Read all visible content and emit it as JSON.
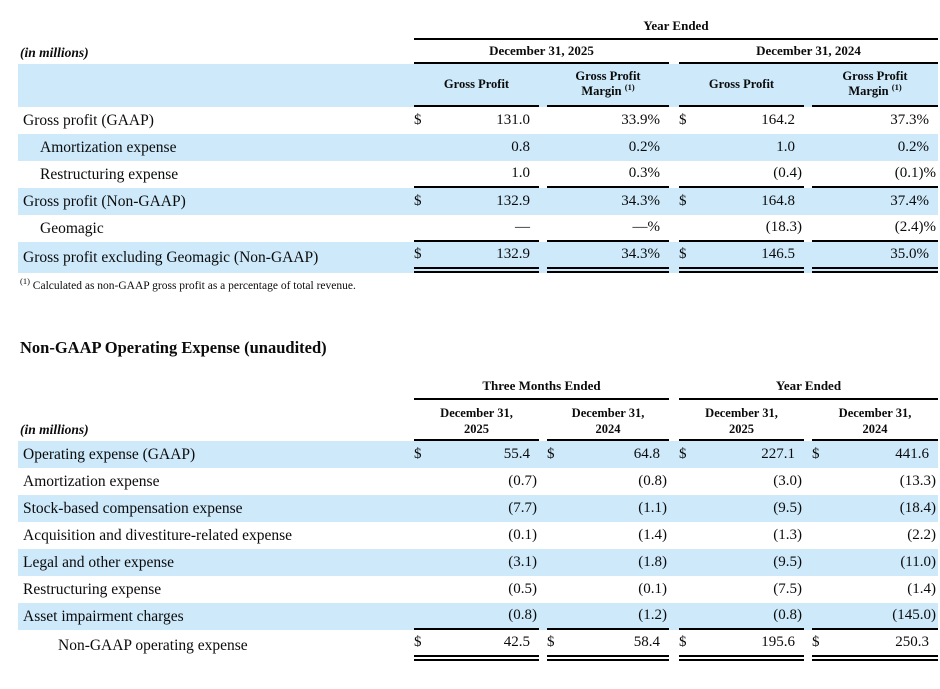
{
  "colors": {
    "row_highlight": "#cde9fa",
    "text": "#0b0b0b",
    "background": "#ffffff"
  },
  "table1": {
    "in_millions_label": "(in millions)",
    "top_header": "Year Ended",
    "group_headers": [
      "December 31, 2025",
      "December 31, 2024"
    ],
    "col_header": {
      "gross_profit": "Gross Profit",
      "margin_line1": "Gross Profit",
      "margin_line2": "Margin",
      "margin_sup": "(1)"
    },
    "rows": [
      {
        "label": "Gross profit (GAAP)",
        "cells": [
          {
            "cur": "$",
            "val": "131.0"
          },
          {
            "val": "33.9%"
          },
          {
            "cur": "$",
            "val": "164.2"
          },
          {
            "val": "37.3%"
          }
        ]
      },
      {
        "label": "Amortization expense",
        "cells": [
          {
            "val": "0.8"
          },
          {
            "val": "0.2%"
          },
          {
            "val": "1.0"
          },
          {
            "val": "0.2%"
          }
        ]
      },
      {
        "label": "Restructuring expense",
        "cells": [
          {
            "val": "1.0"
          },
          {
            "val": "0.3%"
          },
          {
            "val": "(0.4)"
          },
          {
            "val": "(0.1)%"
          }
        ]
      },
      {
        "label": "Gross profit (Non-GAAP)",
        "cells": [
          {
            "cur": "$",
            "val": "132.9"
          },
          {
            "val": "34.3%"
          },
          {
            "cur": "$",
            "val": "164.8"
          },
          {
            "val": "37.4%"
          }
        ]
      },
      {
        "label": "Geomagic",
        "cells": [
          {
            "val": "—"
          },
          {
            "val": "—%"
          },
          {
            "val": "(18.3)"
          },
          {
            "val": "(2.4)%"
          }
        ]
      },
      {
        "label": "Gross profit excluding Geomagic (Non-GAAP)",
        "cells": [
          {
            "cur": "$",
            "val": "132.9"
          },
          {
            "val": "34.3%"
          },
          {
            "cur": "$",
            "val": "146.5"
          },
          {
            "val": "35.0%"
          }
        ]
      }
    ],
    "footnote_sup": "(1)",
    "footnote": "Calculated as non-GAAP gross profit as a percentage of total revenue."
  },
  "section2_title": "Non-GAAP Operating Expense (unaudited)",
  "table2": {
    "in_millions_label": "(in millions)",
    "group_headers": [
      "Three Months Ended",
      "Year Ended"
    ],
    "col_headers": [
      {
        "l1": "December 31,",
        "l2": "2025"
      },
      {
        "l1": "December 31,",
        "l2": "2024"
      },
      {
        "l1": "December 31,",
        "l2": "2025"
      },
      {
        "l1": "December 31,",
        "l2": "2024"
      }
    ],
    "rows": [
      {
        "label": "Operating expense (GAAP)",
        "cells": [
          {
            "cur": "$",
            "val": "55.4"
          },
          {
            "cur": "$",
            "val": "64.8"
          },
          {
            "cur": "$",
            "val": "227.1"
          },
          {
            "cur": "$",
            "val": "441.6"
          }
        ]
      },
      {
        "label": "Amortization expense",
        "cells": [
          {
            "val": "(0.7)"
          },
          {
            "val": "(0.8)"
          },
          {
            "val": "(3.0)"
          },
          {
            "val": "(13.3)"
          }
        ]
      },
      {
        "label": "Stock-based compensation expense",
        "cells": [
          {
            "val": "(7.7)"
          },
          {
            "val": "(1.1)"
          },
          {
            "val": "(9.5)"
          },
          {
            "val": "(18.4)"
          }
        ]
      },
      {
        "label": "Acquisition and divestiture-related expense",
        "cells": [
          {
            "val": "(0.1)"
          },
          {
            "val": "(1.4)"
          },
          {
            "val": "(1.3)"
          },
          {
            "val": "(2.2)"
          }
        ]
      },
      {
        "label": "Legal and other expense",
        "cells": [
          {
            "val": "(3.1)"
          },
          {
            "val": "(1.8)"
          },
          {
            "val": "(9.5)"
          },
          {
            "val": "(11.0)"
          }
        ]
      },
      {
        "label": "Restructuring expense",
        "cells": [
          {
            "val": "(0.5)"
          },
          {
            "val": "(0.1)"
          },
          {
            "val": "(7.5)"
          },
          {
            "val": "(1.4)"
          }
        ]
      },
      {
        "label": "Asset impairment charges",
        "cells": [
          {
            "val": "(0.8)"
          },
          {
            "val": "(1.2)"
          },
          {
            "val": "(0.8)"
          },
          {
            "val": "(145.0)"
          }
        ]
      },
      {
        "label": "Non-GAAP operating expense",
        "cells": [
          {
            "cur": "$",
            "val": "42.5"
          },
          {
            "cur": "$",
            "val": "58.4"
          },
          {
            "cur": "$",
            "val": "195.6"
          },
          {
            "cur": "$",
            "val": "250.3"
          }
        ]
      }
    ]
  }
}
